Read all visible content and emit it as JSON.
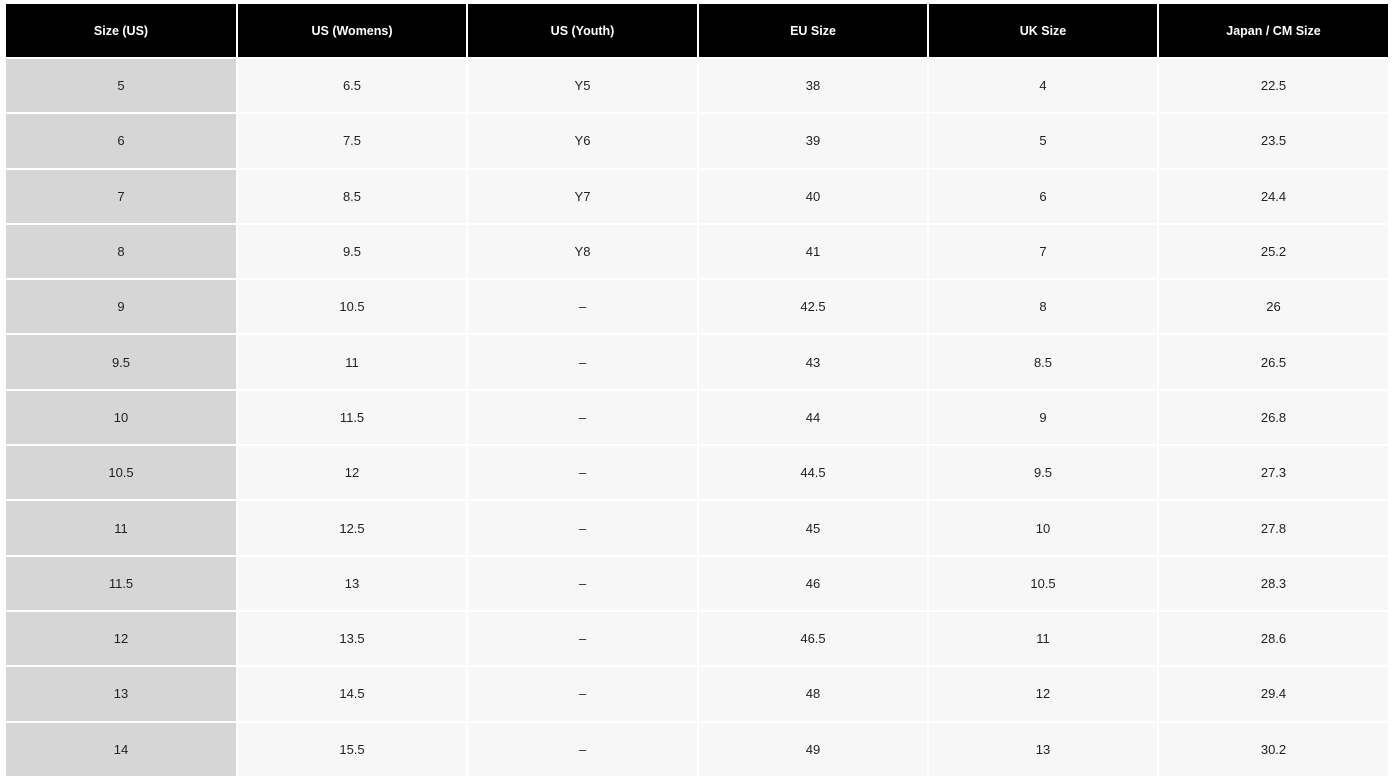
{
  "table": {
    "header": [
      "Size (US)",
      "US (Womens)",
      "US (Youth)",
      "EU Size",
      "UK Size",
      "Japan / CM Size"
    ],
    "rows": [
      [
        "5",
        "6.5",
        "Y5",
        "38",
        "4",
        "22.5"
      ],
      [
        "6",
        "7.5",
        "Y6",
        "39",
        "5",
        "23.5"
      ],
      [
        "7",
        "8.5",
        "Y7",
        "40",
        "6",
        "24.4"
      ],
      [
        "8",
        "9.5",
        "Y8",
        "41",
        "7",
        "25.2"
      ],
      [
        "9",
        "10.5",
        "–",
        "42.5",
        "8",
        "26"
      ],
      [
        "9.5",
        "11",
        "–",
        "43",
        "8.5",
        "26.5"
      ],
      [
        "10",
        "11.5",
        "–",
        "44",
        "9",
        "26.8"
      ],
      [
        "10.5",
        "12",
        "–",
        "44.5",
        "9.5",
        "27.3"
      ],
      [
        "11",
        "12.5",
        "–",
        "45",
        "10",
        "27.8"
      ],
      [
        "11.5",
        "13",
        "–",
        "46",
        "10.5",
        "28.3"
      ],
      [
        "12",
        "13.5",
        "–",
        "46.5",
        "11",
        "28.6"
      ],
      [
        "13",
        "14.5",
        "–",
        "48",
        "12",
        "29.4"
      ],
      [
        "14",
        "15.5",
        "–",
        "49",
        "13",
        "30.2"
      ]
    ]
  }
}
